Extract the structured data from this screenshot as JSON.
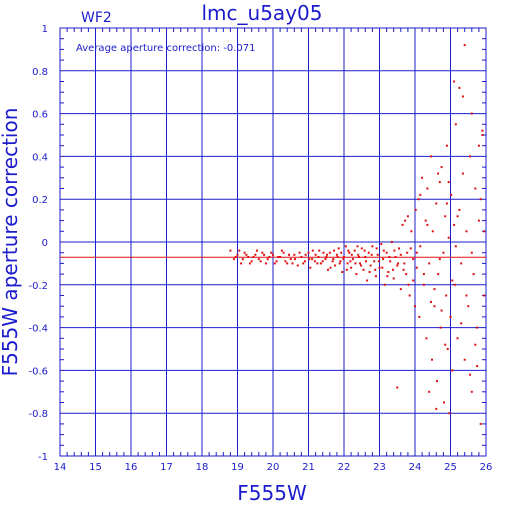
{
  "chart_data": {
    "type": "scatter",
    "title": "lmc_u5ay05",
    "chip_label": "WF2",
    "xlabel": "F555W",
    "ylabel": "F555W aperture correction",
    "annotation": "Average aperture correction: -0.071",
    "average_correction": -0.071,
    "xlim": [
      14,
      26
    ],
    "ylim": [
      -1,
      1
    ],
    "grid": true,
    "x_ticks": [
      "14",
      "15",
      "16",
      "17",
      "18",
      "19",
      "20",
      "21",
      "22",
      "23",
      "24",
      "25",
      "26"
    ],
    "y_ticks": [
      "-1",
      "-0.8",
      "-0.6",
      "-0.4",
      "-0.2",
      "0",
      "0.2",
      "0.4",
      "0.6",
      "0.8",
      "1"
    ],
    "point_color": "#e01010",
    "grid_color": "#1c1ccc",
    "zero_line_color": "#1c1ccc",
    "average_line_color": "#e01010",
    "series": [
      {
        "points": [
          [
            18.8,
            -0.04
          ],
          [
            18.9,
            -0.08
          ],
          [
            19.0,
            -0.06
          ],
          [
            19.1,
            -0.1
          ],
          [
            19.2,
            -0.05
          ],
          [
            19.3,
            -0.07
          ],
          [
            19.4,
            -0.09
          ],
          [
            19.5,
            -0.06
          ],
          [
            19.6,
            -0.08
          ],
          [
            19.7,
            -0.05
          ],
          [
            19.8,
            -0.1
          ],
          [
            19.9,
            -0.07
          ],
          [
            20.0,
            -0.06
          ],
          [
            20.1,
            -0.09
          ],
          [
            20.2,
            -0.07
          ],
          [
            20.3,
            -0.05
          ],
          [
            20.4,
            -0.1
          ],
          [
            20.5,
            -0.08
          ],
          [
            20.6,
            -0.06
          ],
          [
            20.7,
            -0.11
          ],
          [
            20.8,
            -0.07
          ],
          [
            20.9,
            -0.09
          ],
          [
            21.0,
            -0.05
          ],
          [
            21.05,
            -0.12
          ],
          [
            21.1,
            -0.08
          ],
          [
            21.2,
            -0.06
          ],
          [
            21.25,
            -0.1
          ],
          [
            21.3,
            -0.04
          ],
          [
            21.4,
            -0.09
          ],
          [
            21.5,
            -0.07
          ],
          [
            21.55,
            -0.13
          ],
          [
            21.6,
            -0.05
          ],
          [
            21.7,
            -0.08
          ],
          [
            21.75,
            -0.11
          ],
          [
            21.8,
            -0.06
          ],
          [
            21.85,
            -0.03
          ],
          [
            21.9,
            -0.09
          ],
          [
            21.95,
            -0.14
          ],
          [
            22.0,
            -0.07
          ],
          [
            22.05,
            -0.02
          ],
          [
            22.1,
            -0.1
          ],
          [
            22.15,
            -0.05
          ],
          [
            22.2,
            -0.12
          ],
          [
            22.25,
            -0.08
          ],
          [
            22.3,
            -0.04
          ],
          [
            22.35,
            -0.15
          ],
          [
            22.4,
            -0.06
          ],
          [
            22.45,
            -0.1
          ],
          [
            22.5,
            -0.03
          ],
          [
            22.55,
            -0.13
          ],
          [
            22.6,
            -0.07
          ],
          [
            22.65,
            -0.18
          ],
          [
            22.7,
            -0.05
          ],
          [
            22.75,
            -0.11
          ],
          [
            22.8,
            -0.02
          ],
          [
            22.85,
            -0.09
          ],
          [
            22.9,
            -0.16
          ],
          [
            22.95,
            -0.06
          ],
          [
            23.0,
            -0.12
          ],
          [
            23.05,
            -0.01
          ],
          [
            23.1,
            -0.08
          ],
          [
            23.15,
            -0.2
          ],
          [
            23.2,
            -0.05
          ],
          [
            23.25,
            -0.14
          ],
          [
            23.3,
            -0.09
          ],
          [
            23.35,
            0.0
          ],
          [
            23.4,
            -0.17
          ],
          [
            23.45,
            -0.07
          ],
          [
            23.5,
            -0.11
          ],
          [
            23.55,
            -0.03
          ],
          [
            23.6,
            -0.22
          ],
          [
            23.65,
            0.08
          ],
          [
            23.7,
            -0.1
          ],
          [
            23.72,
            0.1
          ],
          [
            23.75,
            -0.15
          ],
          [
            23.78,
            -0.05
          ],
          [
            23.8,
            0.12
          ],
          [
            23.85,
            -0.25
          ],
          [
            23.9,
            0.05
          ],
          [
            23.95,
            -0.08
          ],
          [
            24.0,
            -0.3
          ],
          [
            24.02,
            0.15
          ],
          [
            24.05,
            -0.12
          ],
          [
            24.1,
            0.2
          ],
          [
            24.12,
            -0.35
          ],
          [
            24.15,
            -0.02
          ],
          [
            24.2,
            0.3
          ],
          [
            24.25,
            -0.2
          ],
          [
            24.3,
            0.1
          ],
          [
            24.32,
            -0.45
          ],
          [
            24.35,
            0.25
          ],
          [
            24.4,
            -0.1
          ],
          [
            24.45,
            0.4
          ],
          [
            24.48,
            -0.55
          ],
          [
            24.5,
            0.05
          ],
          [
            24.55,
            -0.3
          ],
          [
            24.6,
            0.18
          ],
          [
            24.62,
            -0.65
          ],
          [
            24.65,
            -0.15
          ],
          [
            24.7,
            0.28
          ],
          [
            24.72,
            -0.4
          ],
          [
            24.75,
            0.35
          ],
          [
            24.8,
            -0.05
          ],
          [
            24.82,
            -0.75
          ],
          [
            24.85,
            0.12
          ],
          [
            24.88,
            -0.25
          ],
          [
            24.9,
            0.45
          ],
          [
            24.92,
            -0.5
          ],
          [
            24.95,
            0.02
          ],
          [
            25.0,
            -0.35
          ],
          [
            25.02,
            0.22
          ],
          [
            25.05,
            -0.6
          ],
          [
            25.1,
            0.08
          ],
          [
            25.12,
            -0.2
          ],
          [
            25.15,
            0.55
          ],
          [
            25.2,
            -0.45
          ],
          [
            25.25,
            0.15
          ],
          [
            25.3,
            -0.1
          ],
          [
            25.35,
            0.32
          ],
          [
            25.4,
            -0.55
          ],
          [
            25.45,
            0.05
          ],
          [
            25.5,
            -0.3
          ],
          [
            25.55,
            0.4
          ],
          [
            25.6,
            -0.7
          ],
          [
            25.65,
            -0.15
          ],
          [
            25.7,
            0.25
          ],
          [
            25.75,
            -0.4
          ],
          [
            25.8,
            0.1
          ],
          [
            25.85,
            -0.85
          ],
          [
            25.9,
            0.5
          ],
          [
            25.95,
            -0.25
          ],
          [
            25.1,
            0.75
          ],
          [
            25.25,
            0.72
          ],
          [
            25.4,
            0.92
          ],
          [
            25.6,
            0.6
          ],
          [
            25.8,
            0.45
          ],
          [
            25.55,
            -0.62
          ],
          [
            25.75,
            -0.58
          ],
          [
            25.9,
            0.52
          ],
          [
            25.35,
            0.68
          ],
          [
            24.97,
            -0.8
          ],
          [
            24.6,
            -0.78
          ],
          [
            24.4,
            -0.7
          ],
          [
            23.5,
            -0.68
          ],
          [
            25.95,
            0.05
          ],
          [
            25.15,
            -0.02
          ],
          [
            24.55,
            -0.22
          ],
          [
            24.85,
            -0.48
          ],
          [
            24.7,
            -0.08
          ],
          [
            24.25,
            -0.15
          ],
          [
            24.45,
            -0.28
          ],
          [
            24.05,
            -0.05
          ],
          [
            24.9,
            0.18
          ],
          [
            24.65,
            0.32
          ],
          [
            24.35,
            0.08
          ],
          [
            24.15,
            0.22
          ],
          [
            24.75,
            -0.32
          ],
          [
            24.95,
            0.28
          ],
          [
            25.05,
            -0.18
          ],
          [
            25.2,
            0.12
          ],
          [
            25.3,
            -0.38
          ],
          [
            25.45,
            -0.25
          ],
          [
            25.6,
            -0.05
          ],
          [
            25.7,
            -0.48
          ],
          [
            25.85,
            0.2
          ],
          [
            23.95,
            -0.18
          ],
          [
            23.88,
            -0.03
          ],
          [
            23.82,
            -0.2
          ],
          [
            23.68,
            -0.13
          ],
          [
            23.6,
            -0.06
          ],
          [
            23.52,
            -0.1
          ],
          [
            23.42,
            -0.04
          ],
          [
            23.38,
            -0.13
          ],
          [
            23.28,
            -0.07
          ],
          [
            23.22,
            -0.16
          ],
          [
            23.12,
            -0.04
          ],
          [
            23.08,
            -0.12
          ],
          [
            22.98,
            -0.09
          ],
          [
            22.92,
            -0.03
          ],
          [
            22.88,
            -0.13
          ],
          [
            22.78,
            -0.06
          ],
          [
            22.72,
            -0.14
          ],
          [
            22.62,
            -0.09
          ],
          [
            22.58,
            -0.04
          ],
          [
            22.48,
            -0.11
          ],
          [
            22.42,
            -0.07
          ],
          [
            22.38,
            -0.02
          ],
          [
            22.32,
            -0.1
          ],
          [
            22.22,
            -0.06
          ],
          [
            22.18,
            -0.09
          ],
          [
            22.12,
            -0.04
          ],
          [
            22.08,
            -0.13
          ],
          [
            21.98,
            -0.08
          ],
          [
            21.92,
            -0.05
          ],
          [
            21.88,
            -0.1
          ],
          [
            21.82,
            -0.07
          ],
          [
            21.72,
            -0.04
          ],
          [
            21.68,
            -0.09
          ],
          [
            21.62,
            -0.12
          ],
          [
            21.52,
            -0.06
          ],
          [
            21.48,
            -0.08
          ],
          [
            21.42,
            -0.05
          ],
          [
            21.35,
            -0.1
          ],
          [
            21.28,
            -0.07
          ],
          [
            21.18,
            -0.09
          ],
          [
            21.12,
            -0.04
          ],
          [
            21.02,
            -0.08
          ],
          [
            20.92,
            -0.06
          ],
          [
            20.85,
            -0.1
          ],
          [
            20.75,
            -0.05
          ],
          [
            20.62,
            -0.08
          ],
          [
            20.55,
            -0.1
          ],
          [
            20.45,
            -0.06
          ],
          [
            20.35,
            -0.09
          ],
          [
            20.25,
            -0.04
          ],
          [
            20.15,
            -0.07
          ],
          [
            20.05,
            -0.1
          ],
          [
            19.95,
            -0.05
          ],
          [
            19.85,
            -0.08
          ],
          [
            19.75,
            -0.06
          ],
          [
            19.65,
            -0.09
          ],
          [
            19.55,
            -0.04
          ],
          [
            19.45,
            -0.07
          ],
          [
            19.35,
            -0.1
          ],
          [
            19.25,
            -0.06
          ],
          [
            19.15,
            -0.08
          ],
          [
            19.05,
            -0.04
          ],
          [
            18.95,
            -0.07
          ]
        ]
      }
    ]
  }
}
